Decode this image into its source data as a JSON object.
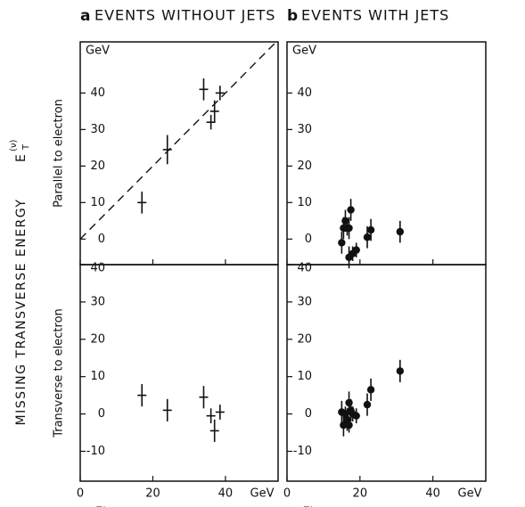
{
  "ylabel": "MISSING TRANSVERSE ENERGY",
  "ylabel_symbol": "E",
  "ylabel_sub": "T",
  "ylabel_sup": "(ν)",
  "chart_data": [
    {
      "type": "scatter",
      "panel_letter": "a",
      "title": "EVENTS WITHOUT JETS",
      "ylabel": "Parallel to electron",
      "marker": "cross",
      "xlim": [
        0,
        54.5
      ],
      "xticks": [
        0,
        20,
        40
      ],
      "ylim": [
        -7,
        54
      ],
      "yticks": [
        0,
        10,
        20,
        30,
        40
      ],
      "y_unit": "GeV",
      "reference_line": {
        "x": [
          0,
          54.5
        ],
        "y": [
          0,
          54.5
        ],
        "dash": true
      },
      "series": [
        {
          "color": "#111",
          "x": [
            17,
            24,
            34,
            36,
            37,
            38.5
          ],
          "values": [
            10,
            24.5,
            41,
            32,
            35,
            40
          ],
          "errors": [
            3,
            4,
            3,
            2,
            3,
            2
          ]
        }
      ]
    },
    {
      "type": "scatter",
      "ylabel": "Transverse to electron",
      "xlabel": "Electron transverse energy",
      "marker": "cross",
      "xlim": [
        0,
        54.5
      ],
      "xticks": [
        0,
        20,
        40
      ],
      "x_unit": "GeV",
      "ylim": [
        -18,
        40
      ],
      "yticks": [
        -10,
        0,
        10,
        20,
        30,
        40
      ],
      "series": [
        {
          "color": "#111",
          "x": [
            17,
            24,
            34,
            36,
            37,
            38.5
          ],
          "values": [
            5,
            1,
            4.5,
            -0.5,
            -4.5,
            0.5
          ],
          "errors": [
            3,
            3,
            3,
            2,
            3,
            2
          ]
        }
      ]
    },
    {
      "type": "scatter",
      "panel_letter": "b",
      "title": "EVENTS WITH JETS",
      "marker": "dot",
      "xlim": [
        0,
        54.5
      ],
      "xticks": [
        0,
        20,
        40
      ],
      "ylim": [
        -7,
        54
      ],
      "yticks": [
        0,
        10,
        20,
        30,
        40
      ],
      "y_unit": "GeV",
      "series": [
        {
          "color": "#111",
          "x": [
            15,
            15.5,
            16,
            16.5,
            17,
            17.5,
            17,
            18,
            19,
            22,
            23,
            31
          ],
          "values": [
            -1,
            3,
            5,
            3,
            -5,
            8,
            3,
            -4,
            -3,
            0.5,
            2.5,
            2
          ],
          "errors": [
            3,
            3,
            3,
            2,
            3,
            3,
            3,
            2,
            2,
            3,
            3,
            3
          ]
        }
      ]
    },
    {
      "type": "scatter",
      "xlabel": "Electron tronsverse energy",
      "marker": "dot",
      "xlim": [
        0,
        54.5
      ],
      "xticks": [
        0,
        20,
        40
      ],
      "x_unit": "GeV",
      "ylim": [
        -18,
        40
      ],
      "yticks": [
        -10,
        0,
        10,
        20,
        30,
        40
      ],
      "series": [
        {
          "color": "#111",
          "x": [
            15,
            15.5,
            16,
            16.5,
            17,
            17.5,
            18,
            19,
            22,
            23,
            31,
            17
          ],
          "values": [
            0.5,
            -3,
            0,
            -1.5,
            3,
            1,
            0,
            -0.5,
            2.5,
            6.5,
            11.5,
            -3
          ],
          "errors": [
            3,
            3,
            2,
            3,
            3,
            3,
            2,
            2,
            3,
            3,
            3,
            2
          ]
        }
      ]
    }
  ]
}
